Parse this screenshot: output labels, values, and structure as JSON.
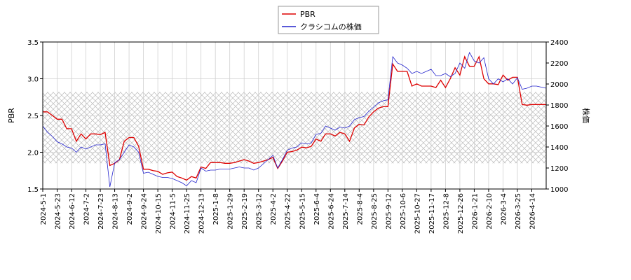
{
  "chart_data": {
    "type": "line",
    "ylabel": "PBR",
    "y2label": "株価",
    "ylim": [
      1.5,
      3.5
    ],
    "yticks": [
      1.5,
      {
        "value": 2,
        "label": "2.0"
      },
      2.5,
      {
        "value": 3,
        "label": "3.0"
      },
      3.5
    ],
    "y2lim": [
      1000,
      2400
    ],
    "y2ticks": [
      1000,
      1200,
      1400,
      1600,
      1800,
      2000,
      2200,
      2400
    ],
    "grid": true,
    "legend": "top",
    "band": [
      1.85,
      2.82
    ],
    "categories": [
      "2024-5-1",
      null,
      null,
      "2024-5-23",
      null,
      null,
      "2024-6-12",
      null,
      null,
      "2024-7-2",
      null,
      null,
      "2024-7-23",
      null,
      null,
      "2024-8-13",
      null,
      null,
      "2024-9-2",
      null,
      null,
      "2024-9-24",
      null,
      null,
      "2024-10-15",
      null,
      null,
      "2024-11-5",
      null,
      null,
      "2024-11-25",
      null,
      null,
      "2024-12-13",
      null,
      null,
      "2025-1-8",
      null,
      null,
      "2025-1-29",
      null,
      null,
      "2025-2-19",
      null,
      null,
      "2025-3-12",
      null,
      null,
      "2025-4-2",
      null,
      null,
      "2025-4-22",
      null,
      null,
      "2025-5-15",
      null,
      null,
      "2025-6-4",
      null,
      null,
      "2025-6-24",
      null,
      null,
      "2025-7-14",
      null,
      null,
      "2025-8-4",
      null,
      null,
      "2025-8-25",
      null,
      null,
      "2025-9-12",
      null,
      null,
      "2025-10-6",
      null,
      null,
      "2025-10-27",
      null,
      null,
      "2025-11-17",
      null,
      null,
      "2025-12-8",
      null,
      null,
      "2025-12-26",
      null,
      null,
      "2026-1-21",
      null,
      null,
      "2026-2-10",
      null,
      null,
      "2026-3-4",
      null,
      null,
      "2026-3-25",
      null,
      null,
      "2026-4-14",
      null,
      null,
      null
    ],
    "series": [
      {
        "name": "PBR",
        "color": "#dd0000",
        "values": [
          2.55,
          2.55,
          2.5,
          2.45,
          2.45,
          2.32,
          2.32,
          2.15,
          2.25,
          2.18,
          2.25,
          2.25,
          2.24,
          2.27,
          1.82,
          1.85,
          1.9,
          2.15,
          2.2,
          2.2,
          2.08,
          1.77,
          1.77,
          1.75,
          1.74,
          1.7,
          1.72,
          1.73,
          1.67,
          1.65,
          1.62,
          1.67,
          1.65,
          1.8,
          1.78,
          1.86,
          1.86,
          1.86,
          1.85,
          1.85,
          1.86,
          1.88,
          1.9,
          1.88,
          1.85,
          1.86,
          1.88,
          1.9,
          1.93,
          1.78,
          1.88,
          2.0,
          2.01,
          2.03,
          2.07,
          2.06,
          2.08,
          2.18,
          2.15,
          2.25,
          2.25,
          2.22,
          2.27,
          2.25,
          2.15,
          2.33,
          2.38,
          2.37,
          2.48,
          2.55,
          2.6,
          2.62,
          2.62,
          3.2,
          3.1,
          3.1,
          3.1,
          2.9,
          2.93,
          2.9,
          2.9,
          2.9,
          2.88,
          2.98,
          2.88,
          3.0,
          3.15,
          3.05,
          3.3,
          3.17,
          3.17,
          3.3,
          3.0,
          2.93,
          2.93,
          2.92,
          3.05,
          2.98,
          3.02,
          3.02,
          2.65,
          2.64,
          2.65,
          2.65,
          2.65,
          2.65
        ]
      },
      {
        "name": "クラシコムの株価",
        "color": "#2222cc",
        "axis": "y2",
        "values": [
          1600,
          1540,
          1500,
          1450,
          1430,
          1400,
          1390,
          1350,
          1400,
          1380,
          1400,
          1420,
          1420,
          1430,
          1020,
          1250,
          1280,
          1350,
          1420,
          1400,
          1350,
          1150,
          1160,
          1140,
          1120,
          1110,
          1110,
          1100,
          1080,
          1060,
          1030,
          1080,
          1060,
          1200,
          1170,
          1180,
          1180,
          1190,
          1190,
          1190,
          1200,
          1210,
          1200,
          1200,
          1180,
          1200,
          1240,
          1280,
          1320,
          1200,
          1280,
          1370,
          1390,
          1400,
          1440,
          1430,
          1440,
          1520,
          1530,
          1600,
          1580,
          1560,
          1590,
          1580,
          1600,
          1660,
          1680,
          1690,
          1740,
          1780,
          1820,
          1840,
          1850,
          2260,
          2200,
          2180,
          2150,
          2100,
          2120,
          2100,
          2120,
          2140,
          2080,
          2080,
          2100,
          2070,
          2100,
          2200,
          2150,
          2300,
          2220,
          2200,
          2250,
          2050,
          2000,
          2050,
          2020,
          2050,
          2000,
          2060,
          1950,
          1960,
          1980,
          1980,
          1970,
          1960
        ]
      }
    ]
  }
}
